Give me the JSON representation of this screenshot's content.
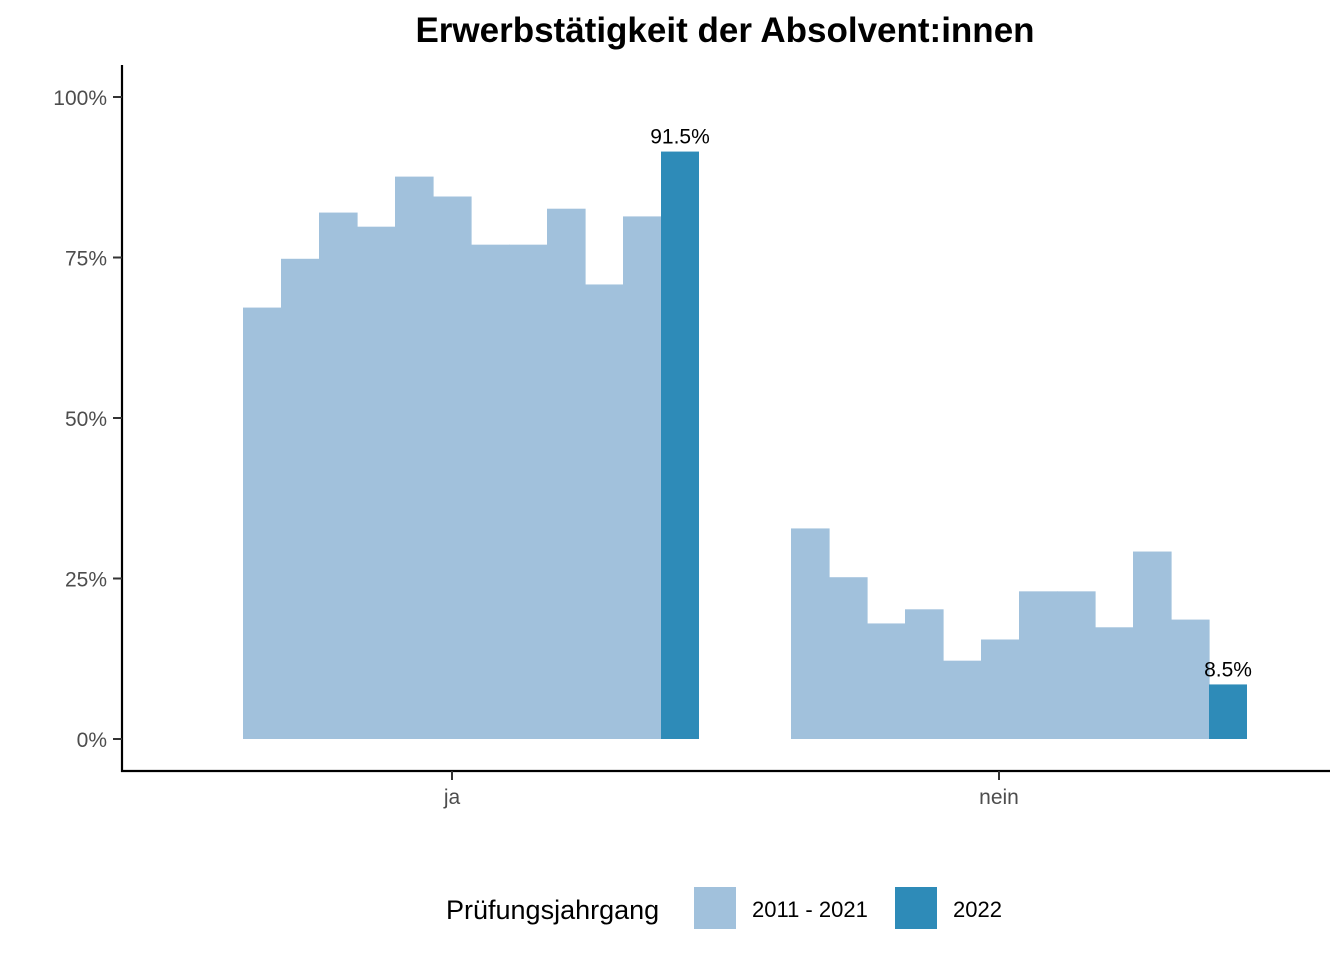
{
  "chart_data": {
    "type": "bar",
    "title": "Erwerbstätigkeit der Absolvent:innen",
    "xlabel": "",
    "ylabel": "",
    "categories": [
      "ja",
      "nein"
    ],
    "ylim": [
      0,
      1.05
    ],
    "y_ticks": [
      0,
      0.25,
      0.5,
      0.75,
      1.0
    ],
    "y_tick_labels": [
      "0%",
      "25%",
      "50%",
      "75%",
      "100%"
    ],
    "grid": false,
    "legend": {
      "title": "Prüfungsjahrgang",
      "position": "bottom",
      "entries": [
        {
          "label": "2011 - 2021",
          "color": "#a1c1dc"
        },
        {
          "label": "2022",
          "color": "#2e8bb8"
        }
      ]
    },
    "series": [
      {
        "name": "2011 - 2021",
        "color": "#a1c1dc",
        "bars_per_category": 11,
        "values": [
          [
            0.672,
            0.748,
            0.82,
            0.798,
            0.876,
            0.845,
            0.77,
            0.77,
            0.826,
            0.708,
            0.814
          ],
          [
            0.328,
            0.252,
            0.18,
            0.202,
            0.122,
            0.155,
            0.23,
            0.23,
            0.174,
            0.292,
            0.186
          ]
        ]
      },
      {
        "name": "2022",
        "color": "#2e8bb8",
        "values": [
          0.915,
          0.085
        ],
        "data_labels": [
          "91.5%",
          "8.5%"
        ]
      }
    ]
  }
}
